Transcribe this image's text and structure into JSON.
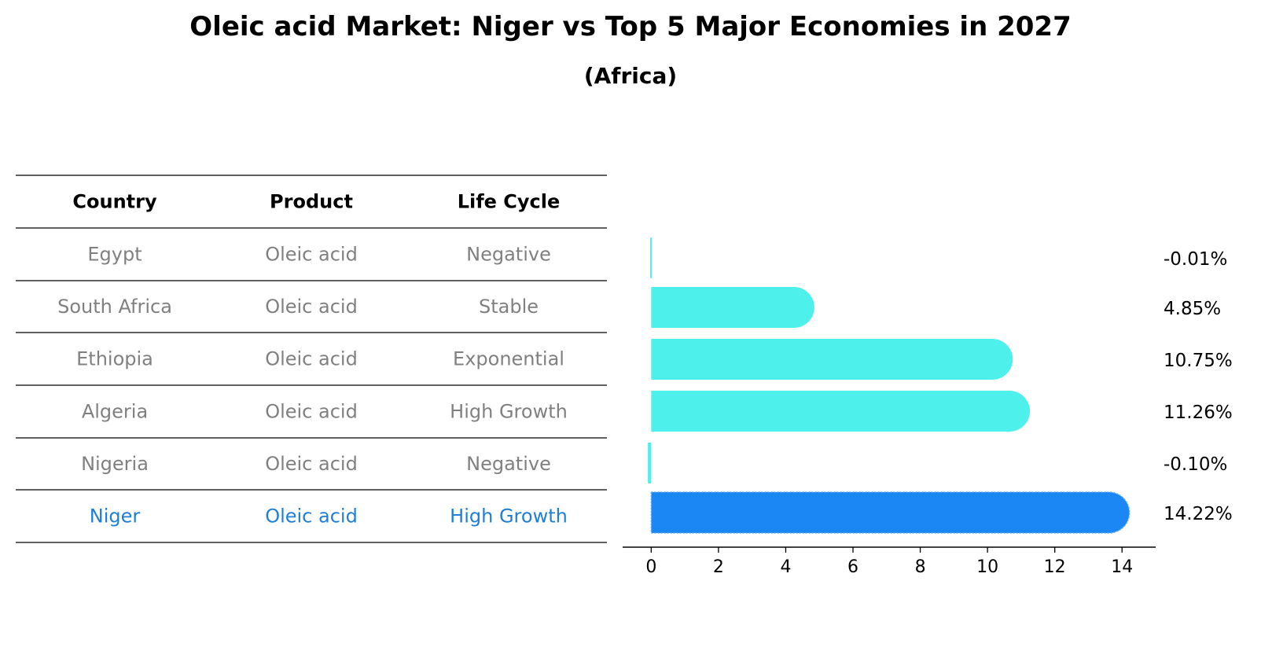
{
  "chart_data": {
    "type": "bar",
    "title": "Oleic acid Market: Niger vs Top 5 Major Economies in 2027",
    "subtitle": "(Africa)",
    "table": {
      "headers": [
        "Country",
        "Product",
        "Life Cycle"
      ],
      "rows": [
        {
          "country": "Egypt",
          "product": "Oleic acid",
          "life_cycle": "Negative",
          "highlight": false
        },
        {
          "country": "South Africa",
          "product": "Oleic acid",
          "life_cycle": "Stable",
          "highlight": false
        },
        {
          "country": "Ethiopia",
          "product": "Oleic acid",
          "life_cycle": "Exponential",
          "highlight": false
        },
        {
          "country": "Algeria",
          "product": "Oleic acid",
          "life_cycle": "High Growth",
          "highlight": false
        },
        {
          "country": "Nigeria",
          "product": "Oleic acid",
          "life_cycle": "Negative",
          "highlight": false
        },
        {
          "country": "Niger",
          "product": "Oleic acid",
          "life_cycle": "High Growth",
          "highlight": true
        }
      ]
    },
    "categories": [
      "Egypt",
      "South Africa",
      "Ethiopia",
      "Algeria",
      "Nigeria",
      "Niger"
    ],
    "values": [
      -0.01,
      4.85,
      10.75,
      11.26,
      -0.1,
      14.22
    ],
    "value_labels": [
      "-0.01%",
      "4.85%",
      "10.75%",
      "11.26%",
      "-0.10%",
      "14.22%"
    ],
    "xticks": [
      0,
      2,
      4,
      6,
      8,
      10,
      12,
      14
    ],
    "xlim": [
      -0.85,
      15
    ],
    "colors": {
      "bar": "#4df0ea",
      "highlight_bar": "#1a87f5",
      "highlight_text": "#1f7fd6",
      "table_text": "#808080",
      "header_text": "#000000"
    }
  }
}
